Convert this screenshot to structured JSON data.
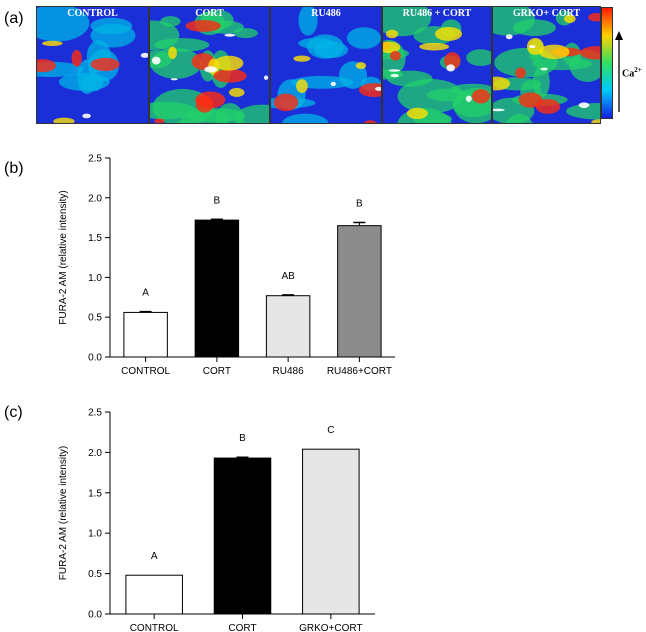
{
  "panels": {
    "a": "(a)",
    "b": "(b)",
    "c": "(c)"
  },
  "images": {
    "tiles": [
      "CONTROL",
      "CORT",
      "RU486",
      "RU486 + CORT",
      "GRKO+ CORT"
    ],
    "colorbar_label": "Ca",
    "colorbar_superscript": "2+",
    "colors": {
      "low": "#1a2fd8",
      "mid": "#22d06a",
      "high": "#ff2a10",
      "peak": "#ffffff"
    }
  },
  "chart_data": [
    {
      "type": "bar",
      "categories": [
        "CONTROL",
        "CORT",
        "RU486",
        "RU486+CORT"
      ],
      "values": [
        0.56,
        1.72,
        0.77,
        1.65
      ],
      "errors": [
        0.01,
        0.01,
        0.01,
        0.04
      ],
      "letters": [
        "A",
        "B",
        "AB",
        "B"
      ],
      "colors": [
        "#ffffff",
        "#000000",
        "#e6e6e6",
        "#8c8c8c"
      ],
      "xlabel": "",
      "ylabel": "FURA-2 AM (relative intensity)",
      "ylim": [
        0,
        2.5
      ],
      "yticks": [
        "0.0",
        "0.5",
        "1.0",
        "1.5",
        "2.0",
        "2.5"
      ],
      "grid": false
    },
    {
      "type": "bar",
      "categories": [
        "CONTROL",
        "CORT",
        "GRKO+CORT"
      ],
      "values": [
        0.48,
        1.93,
        2.04
      ],
      "errors": [
        0.0,
        0.01,
        0.0
      ],
      "letters": [
        "A",
        "B",
        "C"
      ],
      "colors": [
        "#ffffff",
        "#000000",
        "#e6e6e6"
      ],
      "xlabel": "",
      "ylabel": "FURA-2 AM (relative intensity)",
      "ylim": [
        0,
        2.5
      ],
      "yticks": [
        "0.0",
        "0.5",
        "1.0",
        "1.5",
        "2.0",
        "2.5"
      ],
      "grid": false
    }
  ]
}
